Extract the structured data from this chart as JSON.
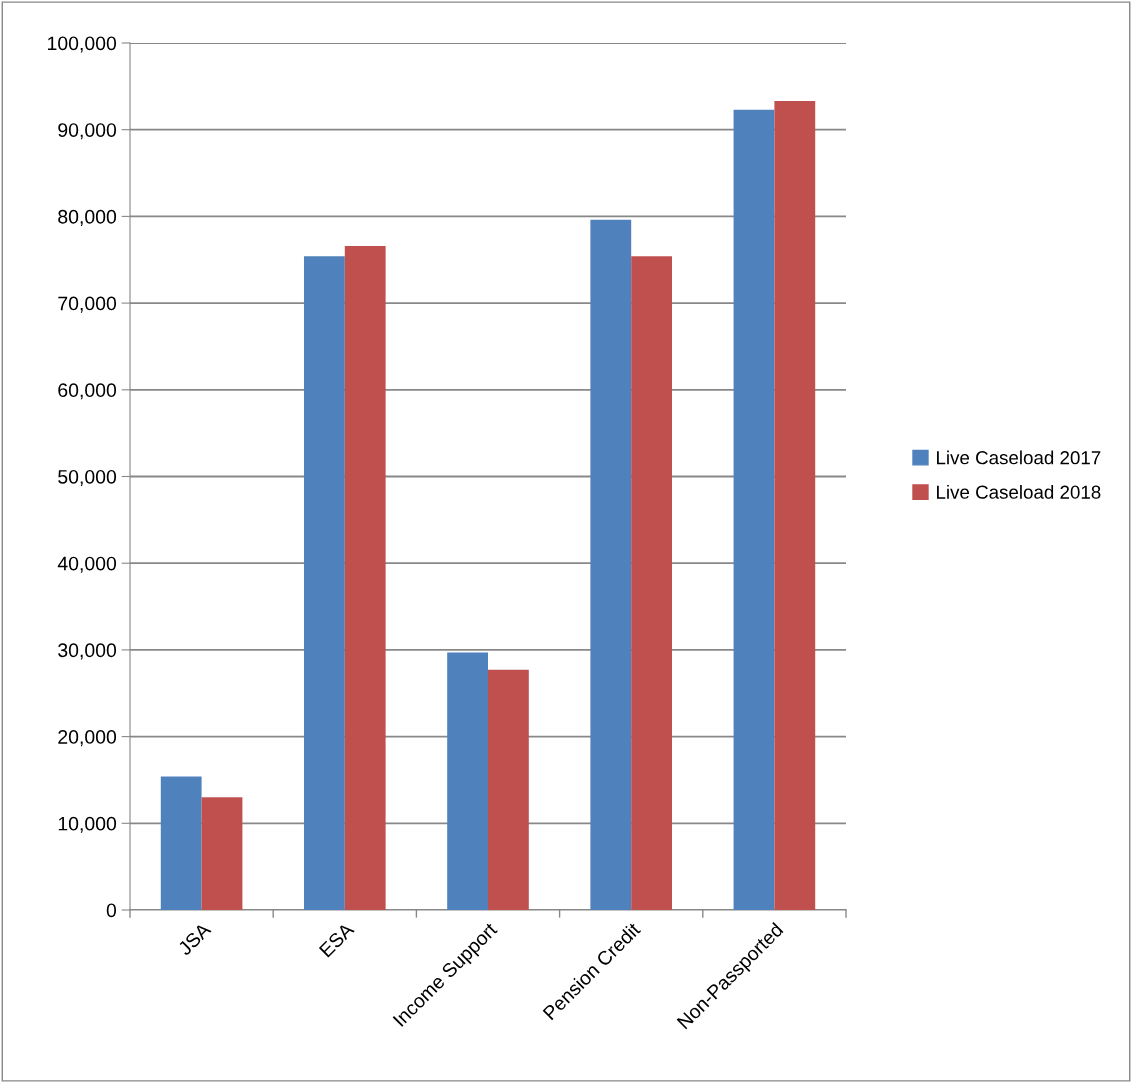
{
  "chart_data": {
    "type": "bar",
    "categories": [
      "JSA",
      "ESA",
      "Income Support",
      "Pension Credit",
      "Non-Passported"
    ],
    "series": [
      {
        "name": "Live Caseload 2017",
        "color": "#4f81bd",
        "values": [
          15400,
          75400,
          29700,
          79600,
          92300
        ]
      },
      {
        "name": "Live Caseload 2018",
        "color": "#c0504d",
        "values": [
          13000,
          76600,
          27700,
          75400,
          93300
        ]
      }
    ],
    "ylim": [
      0,
      100000
    ],
    "yticks": [
      {
        "value": 0,
        "label": "0"
      },
      {
        "value": 10000,
        "label": "10,000"
      },
      {
        "value": 20000,
        "label": "20,000"
      },
      {
        "value": 30000,
        "label": "30,000"
      },
      {
        "value": 40000,
        "label": "40,000"
      },
      {
        "value": 50000,
        "label": "50,000"
      },
      {
        "value": 60000,
        "label": "60,000"
      },
      {
        "value": 70000,
        "label": "70,000"
      },
      {
        "value": 80000,
        "label": "80,000"
      },
      {
        "value": 90000,
        "label": "90,000"
      },
      {
        "value": 100000,
        "label": "100,000"
      }
    ],
    "grid": "y",
    "legend": "right"
  }
}
